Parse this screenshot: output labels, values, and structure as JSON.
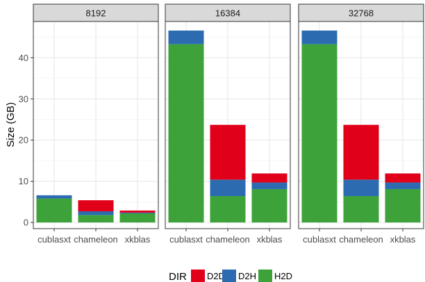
{
  "chart_data": {
    "type": "bar",
    "stacked": true,
    "ylabel": "Size (GB)",
    "xlabel": "",
    "ylim": [
      -1.5,
      48.8
    ],
    "yticks": [
      0,
      10,
      20,
      30,
      40
    ],
    "categories": [
      "cublasxt",
      "chameleon",
      "xkblas"
    ],
    "legend": {
      "title": "DIR",
      "placement": "bottom",
      "entries": [
        {
          "name": "D2D",
          "color": "#e0001a"
        },
        {
          "name": "D2H",
          "color": "#2c6bb0"
        },
        {
          "name": "H2D",
          "color": "#3ea23a"
        }
      ]
    },
    "stack_order": [
      "H2D",
      "D2H",
      "D2D"
    ],
    "panels": [
      {
        "title": "8192",
        "bars": [
          {
            "category": "cublasxt",
            "H2D": 5.8,
            "D2H": 0.8,
            "D2D": 0.0
          },
          {
            "category": "chameleon",
            "H2D": 1.8,
            "D2H": 0.9,
            "D2D": 2.7
          },
          {
            "category": "xkblas",
            "H2D": 2.2,
            "D2H": 0.2,
            "D2D": 0.5
          }
        ]
      },
      {
        "title": "16384",
        "bars": [
          {
            "category": "cublasxt",
            "H2D": 43.3,
            "D2H": 3.3,
            "D2D": 0.0
          },
          {
            "category": "chameleon",
            "H2D": 6.4,
            "D2H": 4.0,
            "D2D": 13.3
          },
          {
            "category": "xkblas",
            "H2D": 8.1,
            "D2H": 1.6,
            "D2D": 2.2
          }
        ]
      },
      {
        "title": "32768",
        "bars": [
          {
            "category": "cublasxt",
            "H2D": 43.3,
            "D2H": 3.3,
            "D2D": 0.0
          },
          {
            "category": "chameleon",
            "H2D": 6.4,
            "D2H": 4.0,
            "D2D": 13.3
          },
          {
            "category": "xkblas",
            "H2D": 8.1,
            "D2H": 1.6,
            "D2D": 2.2
          }
        ]
      }
    ]
  }
}
